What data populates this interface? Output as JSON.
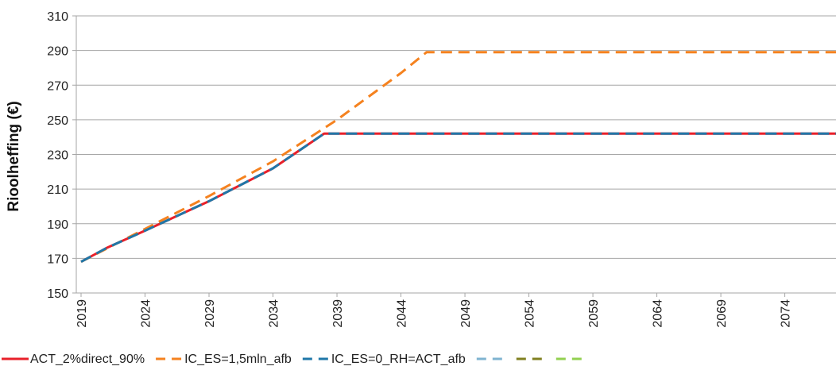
{
  "chart_data": {
    "type": "line",
    "title": "",
    "xlabel": "",
    "ylabel": "Rioolheffing (€)",
    "ylim": [
      150,
      310
    ],
    "yticks": [
      150,
      170,
      190,
      210,
      230,
      250,
      270,
      290,
      310
    ],
    "xlim": [
      2019,
      2078
    ],
    "xticks": [
      2019,
      2024,
      2029,
      2034,
      2039,
      2044,
      2049,
      2054,
      2059,
      2064,
      2069,
      2074
    ],
    "grid": "horizontal",
    "legend_position": "bottom",
    "series": [
      {
        "name": "ACT_2%direct_90%",
        "color": "#e8202a",
        "dash": "solid",
        "x": [
          2019,
          2021,
          2024,
          2029,
          2034,
          2038,
          2078
        ],
        "y": [
          168,
          176,
          186,
          203,
          222,
          242,
          242
        ]
      },
      {
        "name": "IC_ES=1,5mln_afb",
        "color": "#f5821f",
        "dash": "dashed",
        "x": [
          2019,
          2024,
          2029,
          2034,
          2039,
          2044,
          2046,
          2078
        ],
        "y": [
          168,
          187,
          206,
          226,
          250,
          277,
          289,
          289
        ]
      },
      {
        "name": "IC_ES=0_RH=ACT_afb",
        "color": "#1f77a8",
        "dash": "dashed",
        "x": [
          2019,
          2021,
          2024,
          2029,
          2034,
          2038,
          2078
        ],
        "y": [
          168,
          176,
          186,
          203,
          222,
          242,
          242
        ]
      },
      {
        "name": "",
        "color": "#7fb3d0",
        "dash": "dashed",
        "x": [],
        "y": []
      },
      {
        "name": "",
        "color": "#808020",
        "dash": "dashed",
        "x": [],
        "y": []
      },
      {
        "name": "",
        "color": "#92d050",
        "dash": "dashed",
        "x": [],
        "y": []
      }
    ]
  }
}
